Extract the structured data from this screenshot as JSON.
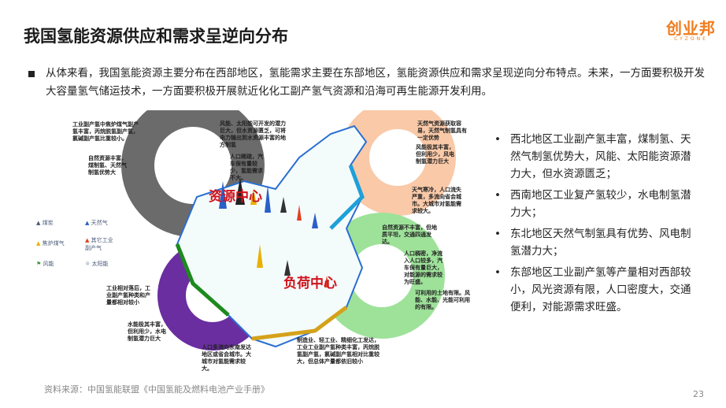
{
  "title": "我国氢能资源供应和需求呈逆向分布",
  "logo": {
    "cn": "创业邦",
    "en": "CYZONE"
  },
  "intro": "从体来看，我国氢能资源主要分布在西部地区，氢能需求主要在东部地区，氢能资源供应和需求呈现逆向分布特点。未来，一方面要积极开发大容量氢气储运技术，一方面要积极开展就近化化工副产氢气资源和沿海可再生能源开发利用。",
  "bullets": [
    "西北地区工业副产氢丰富，煤制氢、天然气制氢优势大，风能、太阳能资源潜力大，但水资源匮乏；",
    "西南地区工业复产氢较少，水电制氢潜力大；",
    "东北地区天然气制氢具有优势、风电制氢潜力大；",
    "东部地区工业副产氢等产量相对西部较小，风光资源有限，人口密度大，交通便利，对能源需求旺盛。"
  ],
  "map": {
    "resource_center": "资源中心",
    "load_center": "负荷中心",
    "notes": [
      "工业副产氢中焦炉煤气副产氢丰富，丙烷脱氢副产氢，氯碱副产氢比重较小。",
      "自然资源丰富，煤制氢、天然气制氢优势大",
      "风能、太阳能可开发的潜力巨大，但水资源匮乏，可将电力输出到水资源丰富的地方制氢",
      "人口稀疏，汽车保有量较少，氢能需求不大。",
      "天然气资源获取容易，天然气制氢具有一定优势",
      "风能极其丰富，但利用少，风电制氢潜力巨大",
      "天气寒冷，人口流失严重，多流向省会城市。大城市对氢能需求较大。",
      "自然资源不丰富，但地质平坦，交通四通发达。",
      "人口稠密，净流入人口较多，汽车保有量巨大，对能源的需求较为旺盛。",
      "可利用的土地有限。风能、水能、光能可利用的有限。",
      "工业相对落后，工业副产氢种类和产量都相对较小",
      "水能极其丰富，但利用少，水电制氢潜力巨大",
      "人口多流向东南发达地区或省会城市。大城市对氢能需求较大。",
      "制造业、轻工业、精细化工发达，工业工业副产氢种类丰富，丙烷脱氢副产氢，氯碱副产氢相对比重较大，但总体产量都依旧较小"
    ],
    "legend": [
      "煤炭",
      "天然气",
      "焦炉煤气",
      "其它工业副产气",
      "风能",
      "太阳能"
    ],
    "colors": {
      "resource_ring": "#6b6b6b",
      "northeast_ring": "#f9c9a8",
      "east_ring": "#9ee29a",
      "southwest_ring": "#6a2ea0",
      "label": "#d0121b"
    }
  },
  "source": "资料来源：中国氢能联盟《中国氢能及燃料电池产业手册》",
  "page": "23"
}
